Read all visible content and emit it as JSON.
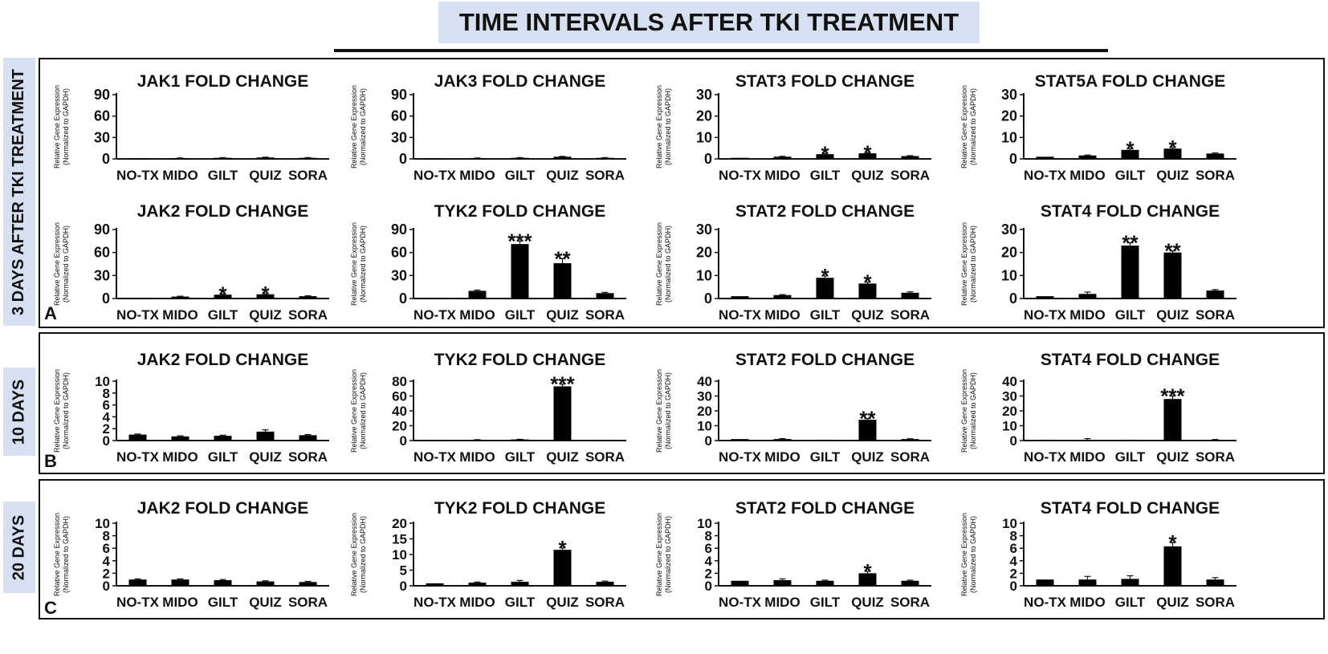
{
  "main_title": "TIME INTERVALS AFTER TKI TREATMENT",
  "panels": [
    {
      "side_label": "3 DAYS AFTER TKI TREATMENT",
      "letter": "A"
    },
    {
      "side_label": "10 DAYS",
      "letter": "B"
    },
    {
      "side_label": "20 DAYS",
      "letter": "C"
    }
  ],
  "ylabel": [
    "Relative Gene Expression",
    "(Normalized to GAPDH)"
  ],
  "categories": [
    "NO-TX",
    "MIDO",
    "GILT",
    "QUIZ",
    "SORA"
  ],
  "chart_data": [
    {
      "type": "bar",
      "panel": "A",
      "title": "JAK1 FOLD CHANGE",
      "ylim": [
        0,
        90
      ],
      "yticks": [
        0,
        30,
        60,
        90
      ],
      "values": [
        0.5,
        1,
        1.5,
        2,
        1.5
      ],
      "errors": [
        0,
        0.3,
        0.3,
        0.4,
        0.3
      ],
      "sig": [
        "",
        "",
        "",
        "",
        ""
      ]
    },
    {
      "type": "bar",
      "panel": "A",
      "title": "JAK3 FOLD CHANGE",
      "ylim": [
        0,
        90
      ],
      "yticks": [
        0,
        30,
        60,
        90
      ],
      "values": [
        0.5,
        1,
        1.5,
        3,
        1.5
      ],
      "errors": [
        0,
        0.3,
        0.3,
        0.5,
        0.3
      ],
      "sig": [
        "",
        "",
        "",
        "",
        ""
      ]
    },
    {
      "type": "bar",
      "panel": "A",
      "title": "STAT3 FOLD CHANGE",
      "ylim": [
        0,
        30
      ],
      "yticks": [
        0,
        10,
        20,
        30
      ],
      "values": [
        0.5,
        1,
        2.2,
        2.6,
        1.3
      ],
      "errors": [
        0,
        0.2,
        0.3,
        0.3,
        0.2
      ],
      "sig": [
        "",
        "",
        "*",
        "*",
        ""
      ]
    },
    {
      "type": "bar",
      "panel": "A",
      "title": "STAT5A FOLD CHANGE",
      "ylim": [
        0,
        30
      ],
      "yticks": [
        0,
        10,
        20,
        30
      ],
      "values": [
        1,
        1.6,
        4.2,
        4.8,
        2.5
      ],
      "errors": [
        0,
        0.2,
        0.5,
        0.5,
        0.3
      ],
      "sig": [
        "",
        "",
        "*",
        "*",
        ""
      ]
    },
    {
      "type": "bar",
      "panel": "A",
      "title": "JAK2 FOLD CHANGE",
      "ylim": [
        0,
        90
      ],
      "yticks": [
        0,
        30,
        60,
        90
      ],
      "values": [
        0.5,
        2.5,
        5,
        5.5,
        3
      ],
      "errors": [
        0,
        0.5,
        0.8,
        0.8,
        0.5
      ],
      "sig": [
        "",
        "",
        "*",
        "*",
        ""
      ]
    },
    {
      "type": "bar",
      "panel": "A",
      "title": "TYK2 FOLD CHANGE",
      "ylim": [
        0,
        90
      ],
      "yticks": [
        0,
        30,
        60,
        90
      ],
      "values": [
        1,
        10,
        71,
        46,
        7
      ],
      "errors": [
        0,
        1,
        4,
        6,
        1
      ],
      "sig": [
        "",
        "",
        "***",
        "**",
        ""
      ]
    },
    {
      "type": "bar",
      "panel": "A",
      "title": "STAT2 FOLD CHANGE",
      "ylim": [
        0,
        30
      ],
      "yticks": [
        0,
        10,
        20,
        30
      ],
      "values": [
        1,
        1.5,
        9,
        6.5,
        2.5
      ],
      "errors": [
        0,
        0.2,
        0.8,
        0.6,
        0.4
      ],
      "sig": [
        "",
        "",
        "*",
        "*",
        ""
      ]
    },
    {
      "type": "bar",
      "panel": "A",
      "title": "STAT4 FOLD CHANGE",
      "ylim": [
        0,
        30
      ],
      "yticks": [
        0,
        10,
        20,
        30
      ],
      "values": [
        1,
        2,
        23,
        20,
        3.5
      ],
      "errors": [
        0,
        0.8,
        1.2,
        0.7,
        0.4
      ],
      "sig": [
        "",
        "",
        "**",
        "**",
        ""
      ]
    },
    {
      "type": "bar",
      "panel": "B",
      "title": "JAK2 FOLD CHANGE",
      "ylim": [
        0,
        10
      ],
      "yticks": [
        0,
        2,
        4,
        6,
        8,
        10
      ],
      "values": [
        1,
        0.7,
        0.8,
        1.5,
        0.9
      ],
      "errors": [
        0.1,
        0.1,
        0.1,
        0.3,
        0.1
      ],
      "sig": [
        "",
        "",
        "",
        "",
        ""
      ]
    },
    {
      "type": "bar",
      "panel": "B",
      "title": "TYK2 FOLD CHANGE",
      "ylim": [
        0,
        80
      ],
      "yticks": [
        0,
        20,
        40,
        60,
        80
      ],
      "values": [
        0.5,
        1,
        1.5,
        73,
        0.5
      ],
      "errors": [
        0,
        0.2,
        0.2,
        3,
        0
      ],
      "sig": [
        "",
        "",
        "",
        "***",
        ""
      ]
    },
    {
      "type": "bar",
      "panel": "B",
      "title": "STAT2 FOLD CHANGE",
      "ylim": [
        0,
        40
      ],
      "yticks": [
        0,
        10,
        20,
        30,
        40
      ],
      "values": [
        1,
        1,
        0.5,
        14,
        1
      ],
      "errors": [
        0,
        0.3,
        0,
        0.8,
        0.2
      ],
      "sig": [
        "",
        "",
        "",
        "**",
        ""
      ]
    },
    {
      "type": "bar",
      "panel": "B",
      "title": "STAT4 FOLD CHANGE",
      "ylim": [
        0,
        40
      ],
      "yticks": [
        0,
        10,
        20,
        30,
        40
      ],
      "values": [
        0.5,
        0.5,
        0.5,
        28,
        0.5
      ],
      "errors": [
        0,
        0.8,
        0,
        2,
        0.2
      ],
      "sig": [
        "",
        "",
        "",
        "***",
        ""
      ]
    },
    {
      "type": "bar",
      "panel": "C",
      "title": "JAK2 FOLD CHANGE",
      "ylim": [
        0,
        10
      ],
      "yticks": [
        0,
        2,
        4,
        6,
        8,
        10
      ],
      "values": [
        1,
        1,
        0.9,
        0.7,
        0.6
      ],
      "errors": [
        0.1,
        0.1,
        0.1,
        0.1,
        0.1
      ],
      "sig": [
        "",
        "",
        "",
        "",
        ""
      ]
    },
    {
      "type": "bar",
      "panel": "C",
      "title": "TYK2 FOLD CHANGE",
      "ylim": [
        0,
        20
      ],
      "yticks": [
        0,
        5,
        10,
        15,
        20
      ],
      "values": [
        0.8,
        1,
        1.3,
        11.5,
        1.3
      ],
      "errors": [
        0,
        0.2,
        0.4,
        0.6,
        0.2
      ],
      "sig": [
        "",
        "",
        "",
        "*",
        ""
      ]
    },
    {
      "type": "bar",
      "panel": "C",
      "title": "STAT2 FOLD CHANGE",
      "ylim": [
        0,
        10
      ],
      "yticks": [
        0,
        2,
        4,
        6,
        8,
        10
      ],
      "values": [
        0.8,
        0.9,
        0.8,
        2,
        0.8
      ],
      "errors": [
        0,
        0.2,
        0.1,
        0.3,
        0.1
      ],
      "sig": [
        "",
        "",
        "",
        "*",
        ""
      ]
    },
    {
      "type": "bar",
      "panel": "C",
      "title": "STAT4 FOLD CHANGE",
      "ylim": [
        0,
        10
      ],
      "yticks": [
        0,
        2,
        4,
        6,
        8,
        10
      ],
      "values": [
        1,
        1,
        1.1,
        6.3,
        1
      ],
      "errors": [
        0,
        0.5,
        0.5,
        0.6,
        0.3
      ],
      "sig": [
        "",
        "",
        "",
        "*",
        ""
      ]
    }
  ]
}
